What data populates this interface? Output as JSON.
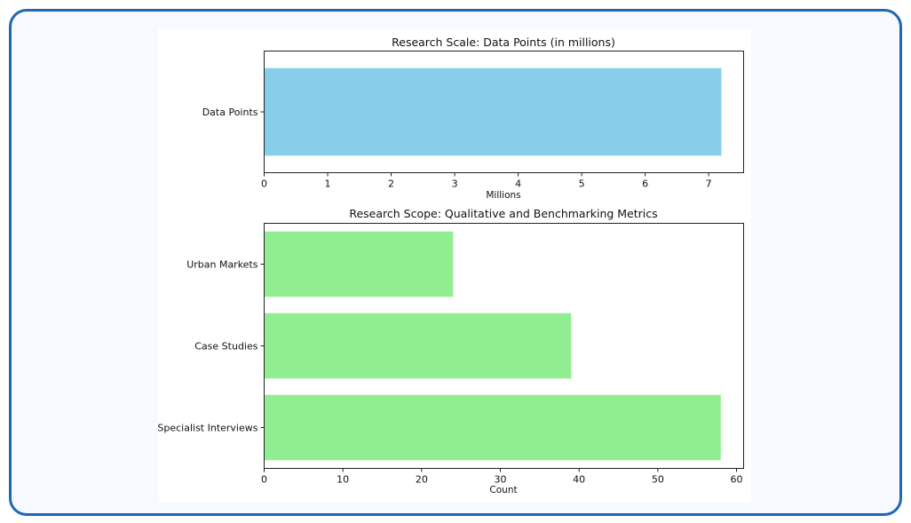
{
  "chart_data": [
    {
      "type": "bar",
      "orientation": "horizontal",
      "title": "Research Scale: Data Points (in millions)",
      "xlabel": "Millions",
      "ylabel": "",
      "categories": [
        "Data Points"
      ],
      "values": [
        7.2
      ],
      "xlim": [
        0,
        7.55
      ],
      "xticks": [
        0,
        1,
        2,
        3,
        4,
        5,
        6,
        7
      ],
      "bar_color": "#87CEEB",
      "grid": false,
      "legend": "none"
    },
    {
      "type": "bar",
      "orientation": "horizontal",
      "title": "Research Scope: Qualitative and Benchmarking Metrics",
      "xlabel": "Count",
      "ylabel": "",
      "categories": [
        "Urban Markets",
        "Case Studies",
        "Specialist Interviews"
      ],
      "values": [
        24,
        39,
        58
      ],
      "xlim": [
        0,
        60.9
      ],
      "xticks": [
        0,
        10,
        20,
        30,
        40,
        50,
        60
      ],
      "bar_color": "#90EE90",
      "grid": false,
      "legend": "none"
    }
  ],
  "colors": {
    "frame_border": "#2067b3",
    "frame_background": "#f6f9fd"
  }
}
